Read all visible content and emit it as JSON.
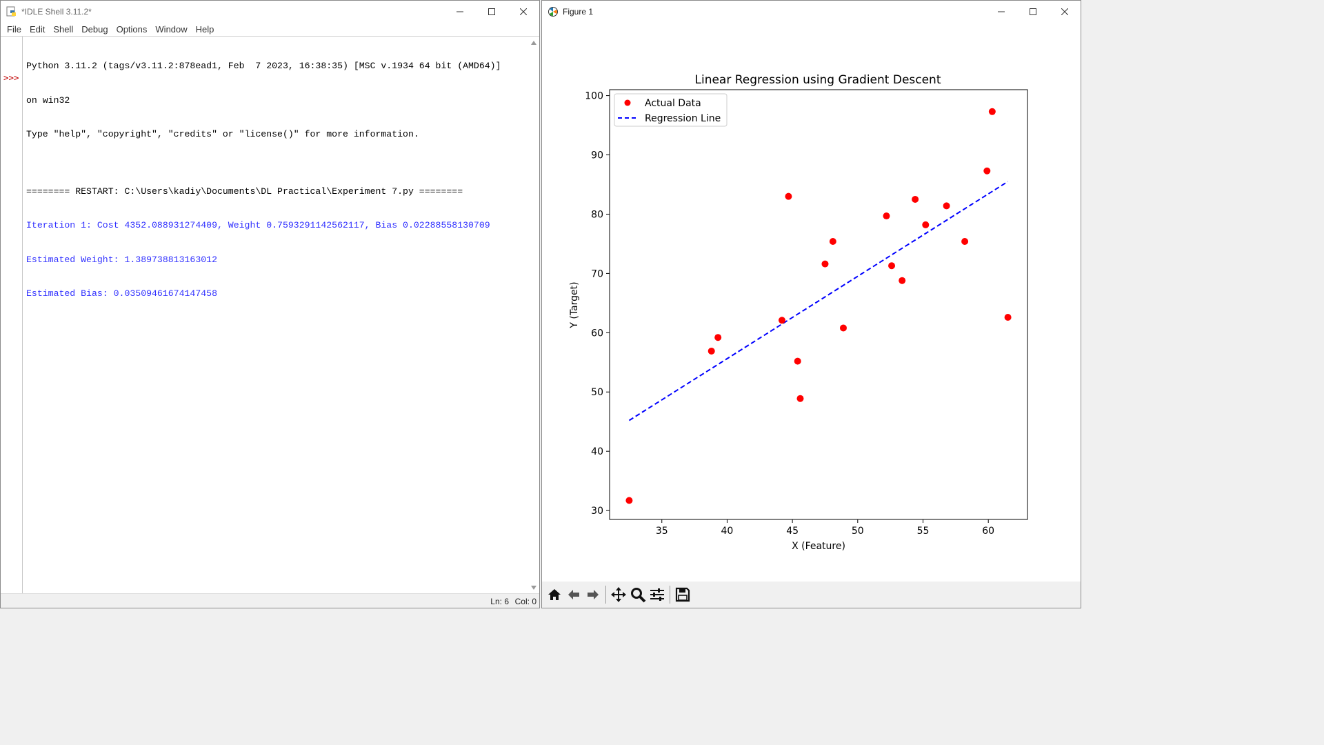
{
  "idle": {
    "title": "*IDLE Shell 3.11.2*",
    "menu": [
      "File",
      "Edit",
      "Shell",
      "Debug",
      "Options",
      "Window",
      "Help"
    ],
    "prompt": ">>>",
    "lines": [
      {
        "text": "Python 3.11.2 (tags/v3.11.2:878ead1, Feb  7 2023, 16:38:35) [MSC v.1934 64 bit (AMD64)]",
        "color": "black"
      },
      {
        "text": "on win32",
        "color": "black"
      },
      {
        "text": "Type \"help\", \"copyright\", \"credits\" or \"license()\" for more information.",
        "color": "black"
      },
      {
        "text": "",
        "color": "black"
      },
      {
        "text": "======== RESTART: C:\\Users\\kadiy\\Documents\\DL Practical\\Experiment 7.py ========",
        "color": "black"
      },
      {
        "text": "Iteration 1: Cost 4352.088931274409, Weight 0.7593291142562117, Bias 0.02288558130709",
        "color": "blue"
      },
      {
        "text": "Estimated Weight: 1.389738813163012",
        "color": "blue"
      },
      {
        "text": "Estimated Bias: 0.03509461674147458",
        "color": "blue"
      }
    ],
    "status": {
      "ln": "Ln: 6",
      "col": "Col: 0"
    }
  },
  "figure": {
    "title": "Figure 1",
    "toolbar_icons": [
      "home-icon",
      "back-arrow-icon",
      "forward-arrow-icon",
      "pan-icon",
      "zoom-icon",
      "configure-subplots-icon",
      "save-icon"
    ]
  },
  "chart_data": {
    "type": "scatter",
    "title": "Linear Regression using Gradient Descent",
    "xlabel": "X (Feature)",
    "ylabel": "Y (Target)",
    "xlim": [
      31.0,
      63.0
    ],
    "ylim": [
      28.5,
      101
    ],
    "xticks": [
      35,
      40,
      45,
      50,
      55,
      60
    ],
    "yticks": [
      30,
      40,
      50,
      60,
      70,
      80,
      90,
      100
    ],
    "legend_position": "top-left",
    "grid": false,
    "series": [
      {
        "name": "Actual Data",
        "kind": "scatter",
        "color": "#ff0000",
        "x": [
          32.5,
          38.8,
          39.3,
          44.2,
          44.7,
          45.4,
          45.6,
          47.5,
          48.1,
          48.9,
          52.2,
          52.6,
          53.4,
          54.4,
          55.2,
          56.8,
          58.2,
          59.9,
          60.3,
          61.5
        ],
        "y": [
          31.7,
          56.9,
          59.2,
          62.1,
          83.0,
          55.2,
          48.9,
          71.6,
          75.4,
          60.8,
          79.7,
          71.3,
          68.8,
          82.5,
          78.2,
          81.4,
          75.4,
          87.3,
          97.3,
          62.6
        ]
      },
      {
        "name": "Regression Line",
        "kind": "line",
        "style": "dashed",
        "color": "#0000ff",
        "x": [
          32.5,
          61.5
        ],
        "y": [
          45.2,
          85.5
        ]
      }
    ]
  }
}
